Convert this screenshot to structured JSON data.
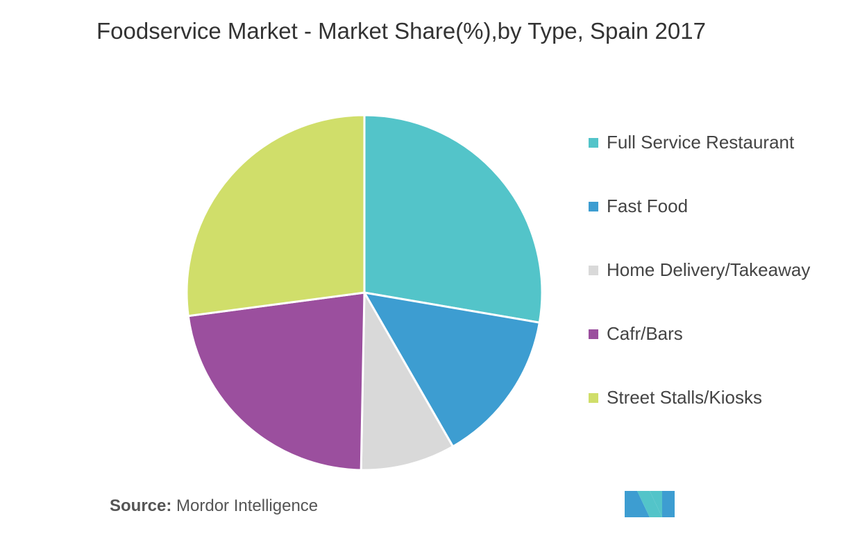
{
  "chart_data": {
    "type": "pie",
    "title": "Foodservice Market - Market Share(%),by Type, Spain 2017",
    "categories": [
      "Full Service Restaurant",
      "Fast Food",
      "Home Delivery/Takeaway",
      "Cafr/Bars",
      "Street Stalls/Kiosks"
    ],
    "values": [
      27.7,
      14.0,
      8.6,
      22.6,
      27.1
    ],
    "colors": [
      "#53c4c9",
      "#3d9dd1",
      "#d9d9d9",
      "#9b4f9e",
      "#d0de6a"
    ],
    "source_label": "Source:",
    "source": "Mordor Intelligence"
  }
}
